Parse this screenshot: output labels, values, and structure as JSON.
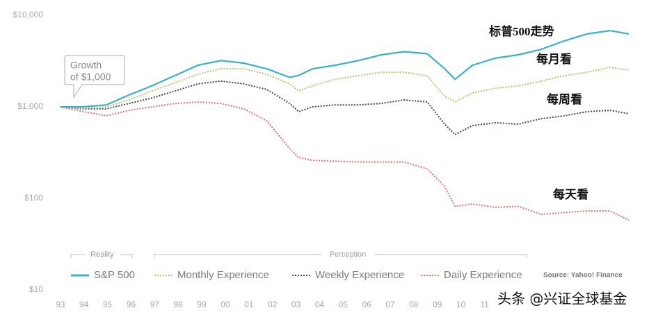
{
  "chart_data": {
    "type": "line",
    "log_scale": true,
    "x": [
      1993,
      1993.97,
      1994.95,
      1995.92,
      1996.89,
      1997.87,
      1998.84,
      1999.81,
      2000.78,
      2001.76,
      2002.73,
      2003.11,
      2003.7,
      2004.67,
      2005.65,
      2006.62,
      2007.59,
      2008.57,
      2009.31,
      2009.75,
      2010.49,
      2011.46,
      2012.43,
      2013.41,
      2014.38,
      2015.35,
      2016.32,
      2017.12
    ],
    "xlim": [
      1992.8,
      2017.3
    ],
    "xticks": [
      {
        "value": 1993,
        "label": "93"
      },
      {
        "value": 1994,
        "label": "94"
      },
      {
        "value": 1995,
        "label": "95"
      },
      {
        "value": 1996,
        "label": "96"
      },
      {
        "value": 1997,
        "label": "97"
      },
      {
        "value": 1998,
        "label": "98"
      },
      {
        "value": 1999,
        "label": "99"
      },
      {
        "value": 2000,
        "label": "00"
      },
      {
        "value": 2001,
        "label": "01"
      },
      {
        "value": 2002,
        "label": "02"
      },
      {
        "value": 2003,
        "label": "03"
      },
      {
        "value": 2004,
        "label": "04"
      },
      {
        "value": 2005,
        "label": "05"
      },
      {
        "value": 2006,
        "label": "06"
      },
      {
        "value": 2007,
        "label": "07"
      },
      {
        "value": 2008,
        "label": "08"
      },
      {
        "value": 2009,
        "label": "09"
      },
      {
        "value": 2010,
        "label": "10"
      },
      {
        "value": 2011,
        "label": "11"
      }
    ],
    "ylim": [
      10,
      10000
    ],
    "yticks": [
      {
        "value": 10,
        "label": "$10"
      },
      {
        "value": 100,
        "label": "$100"
      },
      {
        "value": 1000,
        "label": "$1,000"
      },
      {
        "value": 10000,
        "label": "$10,000"
      }
    ],
    "series": [
      {
        "name": "S&P 500",
        "color": "#3bb0c9",
        "style": "solid",
        "values": [
          1000,
          1000,
          1050,
          1350,
          1700,
          2200,
          2850,
          3200,
          3000,
          2600,
          2100,
          2200,
          2600,
          2850,
          3200,
          3700,
          4000,
          3800,
          2600,
          2000,
          2850,
          3400,
          3700,
          4250,
          5250,
          6250,
          6800,
          6250
        ]
      },
      {
        "name": "Monthly Experience",
        "color": "#a6cb6c",
        "style": "dotted",
        "values": [
          1000,
          970,
          1000,
          1190,
          1490,
          1840,
          2270,
          2610,
          2610,
          2270,
          1780,
          1490,
          1690,
          2010,
          2190,
          2390,
          2390,
          2190,
          1300,
          1130,
          1420,
          1600,
          1690,
          1910,
          2190,
          2390,
          2700,
          2520
        ]
      },
      {
        "name": "Weekly Experience",
        "color": "#3c4458",
        "style": "dotted",
        "values": [
          1000,
          950,
          950,
          1090,
          1250,
          1490,
          1780,
          1910,
          1780,
          1550,
          1090,
          885,
          1000,
          1050,
          1050,
          1090,
          1190,
          1130,
          647,
          498,
          624,
          669,
          647,
          743,
          797,
          885,
          916,
          840
        ]
      },
      {
        "name": "Daily Experience",
        "color": "#e07272",
        "style": "dotted",
        "values": [
          1000,
          885,
          800,
          915,
          1000,
          1090,
          1130,
          1090,
          950,
          705,
          350,
          280,
          260,
          255,
          250,
          250,
          250,
          210,
          135,
          82,
          87,
          80,
          82,
          67,
          70,
          73,
          73,
          58
        ]
      }
    ],
    "legend_groups": [
      "Reality",
      "Perception"
    ],
    "callout": [
      "Growth",
      "of $1,000"
    ],
    "annotations": [
      "标普500走势",
      "每月看",
      "每周看",
      "每天看"
    ],
    "source": "Source: Yahoo! Finance",
    "watermark": "头条 @兴证全球基金"
  }
}
